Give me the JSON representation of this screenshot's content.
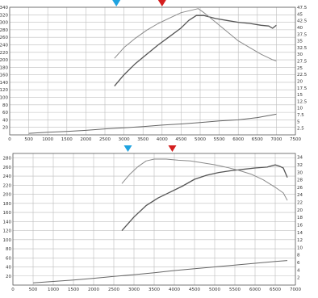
{
  "chart_data": [
    {
      "type": "line",
      "x_ticks": [
        "0",
        "500",
        "1000",
        "1500",
        "2000",
        "2500",
        "3000",
        "3500",
        "4000",
        "4500",
        "5000",
        "5500",
        "6000",
        "6500",
        "7000",
        "7500"
      ],
      "left_ticks": [
        "20",
        "40",
        "60",
        "80",
        "100",
        "120",
        "140",
        "160",
        "180",
        "200",
        "220",
        "240",
        "260",
        "280",
        "300",
        "320",
        "340"
      ],
      "right_ticks": [
        "2.5",
        "5",
        "7.5",
        "10",
        "12.5",
        "15",
        "17.5",
        "20",
        "22.5",
        "25",
        "27.5",
        "30",
        "32.5",
        "35",
        "37.5",
        "40",
        "42.5",
        "45",
        "47.5"
      ],
      "xlim": [
        0,
        7500
      ],
      "ylim_left": [
        0,
        340
      ],
      "ylim_right": [
        0,
        47.5
      ],
      "grid": true,
      "markers": [
        {
          "x": 2800,
          "color": "#1fa3e0",
          "shape": "triangle-down"
        },
        {
          "x": 4000,
          "color": "#d41e1e",
          "shape": "triangle-down"
        }
      ],
      "series": [
        {
          "axis": "left",
          "color": "#555555",
          "x": [
            2750,
            3000,
            3300,
            3600,
            3900,
            4200,
            4500,
            4700,
            4900,
            5100,
            5400,
            5700,
            6000,
            6300,
            6600,
            6800,
            6900,
            7000
          ],
          "y": [
            130,
            160,
            190,
            215,
            240,
            262,
            285,
            305,
            318,
            318,
            310,
            305,
            300,
            297,
            292,
            290,
            284,
            292
          ]
        },
        {
          "axis": "right",
          "color": "#8a8a8a",
          "x": [
            2750,
            3000,
            3300,
            3600,
            3900,
            4200,
            4500,
            4800,
            4950,
            5100,
            5400,
            5700,
            6000,
            6300,
            6600,
            6900,
            7000
          ],
          "y": [
            28.5,
            32.5,
            36,
            39,
            41.5,
            43.5,
            45.5,
            46.5,
            47,
            45.5,
            42,
            38.5,
            35,
            32.5,
            30,
            28,
            27.5
          ]
        },
        {
          "axis": "left",
          "color": "#666666",
          "x": [
            500,
            1000,
            1500,
            2000,
            2500,
            3000,
            3500,
            4000,
            4500,
            5000,
            5500,
            6000,
            6500,
            7000
          ],
          "y": [
            4,
            7,
            9,
            12,
            16,
            19,
            22,
            26,
            29,
            33,
            37,
            40,
            46,
            55
          ]
        }
      ]
    },
    {
      "type": "line",
      "x_ticks": [
        "0",
        "500",
        "1000",
        "1500",
        "2000",
        "2500",
        "3000",
        "3500",
        "4000",
        "4500",
        "5000",
        "5500",
        "6000",
        "6500",
        "7000"
      ],
      "left_ticks": [
        "20",
        "40",
        "60",
        "80",
        "100",
        "120",
        "140",
        "160",
        "180",
        "200",
        "220",
        "240",
        "260",
        "280"
      ],
      "right_ticks": [
        "2",
        "4",
        "6",
        "8",
        "10",
        "12",
        "14",
        "16",
        "18",
        "20",
        "22",
        "24",
        "26",
        "28",
        "30",
        "32",
        "34"
      ],
      "xlim": [
        0,
        7000
      ],
      "ylim_left": [
        0,
        290
      ],
      "ylim_right": [
        0,
        35
      ],
      "grid": true,
      "markers": [
        {
          "x": 2850,
          "color": "#1fa3e0",
          "shape": "triangle-down"
        },
        {
          "x": 3950,
          "color": "#d41e1e",
          "shape": "triangle-down"
        }
      ],
      "series": [
        {
          "axis": "left",
          "color": "#555555",
          "x": [
            2700,
            3000,
            3300,
            3600,
            3900,
            4200,
            4500,
            4800,
            5100,
            5400,
            5700,
            6000,
            6300,
            6500,
            6600,
            6700,
            6800
          ],
          "y": [
            120,
            150,
            175,
            192,
            205,
            218,
            233,
            242,
            248,
            252,
            255,
            258,
            260,
            265,
            262,
            258,
            237
          ]
        },
        {
          "axis": "right",
          "color": "#8a8a8a",
          "x": [
            2700,
            2900,
            3100,
            3300,
            3500,
            3800,
            4100,
            4400,
            4700,
            5000,
            5300,
            5600,
            5900,
            6200,
            6500,
            6700,
            6800
          ],
          "y": [
            27,
            29.5,
            31.5,
            33,
            33.5,
            33.5,
            33.2,
            33,
            32.5,
            32,
            31.3,
            30.5,
            29.5,
            28,
            26,
            24.5,
            22.5
          ]
        },
        {
          "axis": "left",
          "color": "#666666",
          "x": [
            500,
            1000,
            1500,
            2000,
            2500,
            3000,
            3500,
            4000,
            4500,
            5000,
            5500,
            6000,
            6500,
            6800
          ],
          "y": [
            5,
            8,
            11,
            15,
            19,
            23,
            27,
            32,
            36,
            40,
            44,
            48,
            52,
            54
          ]
        }
      ]
    }
  ]
}
